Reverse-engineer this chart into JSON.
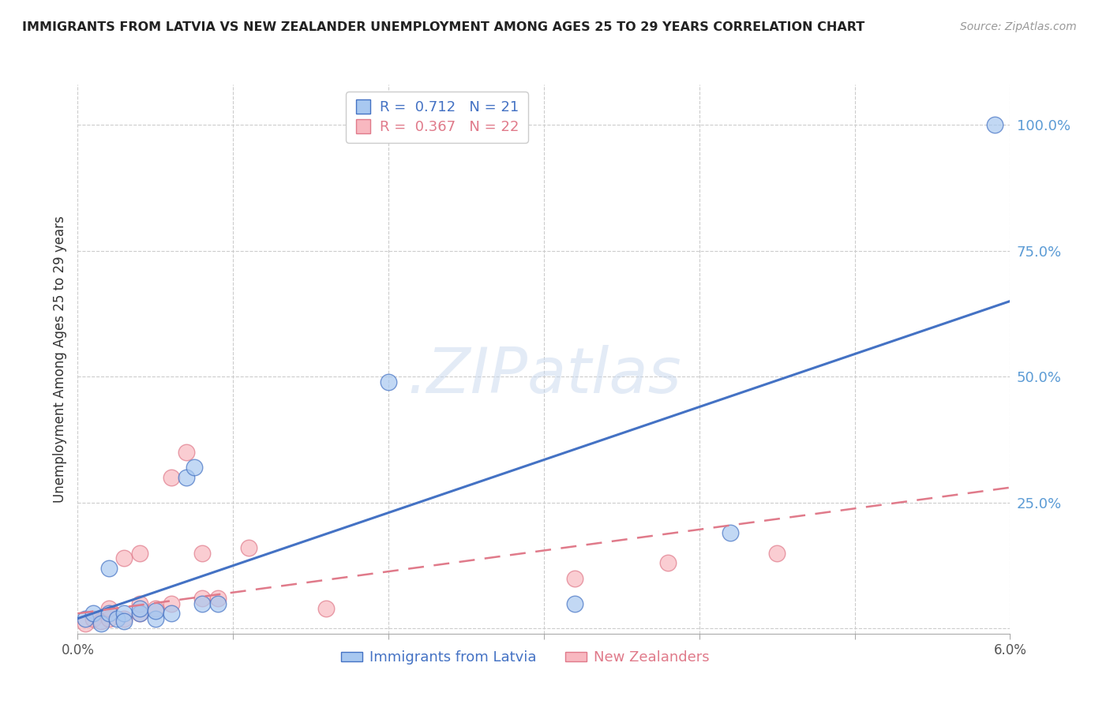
{
  "title": "IMMIGRANTS FROM LATVIA VS NEW ZEALANDER UNEMPLOYMENT AMONG AGES 25 TO 29 YEARS CORRELATION CHART",
  "source": "Source: ZipAtlas.com",
  "ylabel": "Unemployment Among Ages 25 to 29 years",
  "xlim": [
    0.0,
    0.06
  ],
  "ylim": [
    -0.01,
    1.08
  ],
  "yticks": [
    0.0,
    0.25,
    0.5,
    0.75,
    1.0
  ],
  "ytick_labels": [
    "",
    "25.0%",
    "50.0%",
    "75.0%",
    "100.0%"
  ],
  "xticks": [
    0.0,
    0.01,
    0.02,
    0.03,
    0.04,
    0.05,
    0.06
  ],
  "xtick_labels": [
    "0.0%",
    "",
    "",
    "",
    "",
    "",
    "6.0%"
  ],
  "blue_R": 0.712,
  "blue_N": 21,
  "pink_R": 0.367,
  "pink_N": 22,
  "blue_color": "#a8c8f0",
  "pink_color": "#f8b8c0",
  "blue_line_color": "#4472c4",
  "pink_line_color": "#e07a8a",
  "axis_color": "#5b9bd5",
  "blue_scatter_x": [
    0.0005,
    0.001,
    0.0015,
    0.002,
    0.002,
    0.0025,
    0.003,
    0.003,
    0.004,
    0.004,
    0.005,
    0.005,
    0.006,
    0.007,
    0.0075,
    0.008,
    0.009,
    0.02,
    0.032,
    0.042,
    0.059
  ],
  "blue_scatter_y": [
    0.02,
    0.03,
    0.01,
    0.03,
    0.12,
    0.02,
    0.03,
    0.015,
    0.03,
    0.04,
    0.02,
    0.035,
    0.03,
    0.3,
    0.32,
    0.05,
    0.05,
    0.49,
    0.05,
    0.19,
    1.0
  ],
  "pink_scatter_x": [
    0.0005,
    0.001,
    0.0015,
    0.002,
    0.002,
    0.003,
    0.003,
    0.004,
    0.004,
    0.004,
    0.005,
    0.006,
    0.006,
    0.007,
    0.008,
    0.008,
    0.009,
    0.011,
    0.016,
    0.032,
    0.038,
    0.045
  ],
  "pink_scatter_y": [
    0.01,
    0.02,
    0.015,
    0.02,
    0.04,
    0.02,
    0.14,
    0.03,
    0.05,
    0.15,
    0.04,
    0.3,
    0.05,
    0.35,
    0.06,
    0.15,
    0.06,
    0.16,
    0.04,
    0.1,
    0.13,
    0.15
  ],
  "blue_trend_x": [
    0.0,
    0.06
  ],
  "blue_trend_y": [
    0.02,
    0.65
  ],
  "pink_trend_x": [
    0.0,
    0.06
  ],
  "pink_trend_y": [
    0.03,
    0.28
  ],
  "legend_blue_label": "Immigrants from Latvia",
  "legend_pink_label": "New Zealanders",
  "background_color": "#ffffff",
  "grid_color": "#cccccc",
  "watermark_color": "#c8d8ee"
}
